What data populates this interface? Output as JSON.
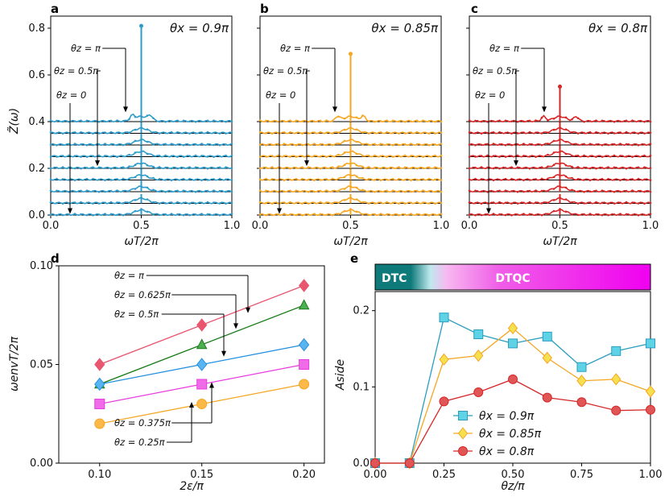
{
  "chart_data": [
    {
      "panel": "a",
      "type": "line",
      "title": "θx = 0.9π",
      "xlabel": "ωT/2π",
      "ylabel": "Z̃(ω)",
      "xlim": [
        0,
        1
      ],
      "ylim": [
        0,
        0.85
      ],
      "xticks": [
        "0.0",
        "0.5",
        "1.0"
      ],
      "yticks": [
        "0.0",
        "0.2",
        "0.4",
        "0.6",
        "0.8"
      ],
      "color": "#2f9bc9",
      "trace_offsets": [
        0.0,
        0.05,
        0.1,
        0.15,
        0.2,
        0.25,
        0.3,
        0.35,
        0.4
      ],
      "center_peak": 0.81,
      "side_peaks": [
        0.45,
        0.55
      ],
      "annotations": [
        "θz = π",
        "θz = 0.5π",
        "θz = 0"
      ]
    },
    {
      "panel": "b",
      "type": "line",
      "title": "θx = 0.85π",
      "xlabel": "ωT/2π",
      "xlim": [
        0,
        1
      ],
      "ylim": [
        0,
        0.85
      ],
      "xticks": [
        "0.0",
        "0.5",
        "1.0"
      ],
      "color": "#f5a623",
      "trace_offsets": [
        0.0,
        0.05,
        0.1,
        0.15,
        0.2,
        0.25,
        0.3,
        0.35,
        0.4
      ],
      "center_peak": 0.69,
      "side_peaks": [
        0.43,
        0.57
      ],
      "annotations": [
        "θz = π",
        "θz = 0.5π",
        "θz = 0"
      ]
    },
    {
      "panel": "c",
      "type": "line",
      "title": "θx = 0.8π",
      "xlabel": "ωT/2π",
      "xlim": [
        0,
        1
      ],
      "ylim": [
        0,
        0.85
      ],
      "xticks": [
        "0.0",
        "0.5",
        "1.0"
      ],
      "color": "#d62728",
      "trace_offsets": [
        0.0,
        0.05,
        0.1,
        0.15,
        0.2,
        0.25,
        0.3,
        0.35,
        0.4
      ],
      "center_peak": 0.55,
      "side_peaks": [
        0.41,
        0.59
      ],
      "annotations": [
        "θz = π",
        "θz = 0.5π",
        "θz = 0"
      ]
    },
    {
      "panel": "d",
      "type": "scatter",
      "xlabel": "2ε/π",
      "ylabel": "ωenvT/2π",
      "xlim": [
        0.08,
        0.21
      ],
      "ylim": [
        0,
        0.1
      ],
      "xticks": [
        "0.10",
        "0.15",
        "0.20"
      ],
      "yticks": [
        "0.00",
        "0.05",
        "0.10"
      ],
      "x": [
        0.1,
        0.15,
        0.2
      ],
      "series": [
        {
          "name": "θz = π",
          "marker": "diamond",
          "color": "#e8566f",
          "values": [
            0.05,
            0.07,
            0.09
          ]
        },
        {
          "name": "θz = 0.625π",
          "marker": "triangle",
          "color": "#4caf50",
          "line": "#1a7d1a",
          "values": [
            0.04,
            0.06,
            0.08
          ]
        },
        {
          "name": "θz = 0.5π",
          "marker": "diamond",
          "color": "#5ab4f0",
          "line": "#1f8fe0",
          "values": [
            0.04,
            0.05,
            0.06
          ]
        },
        {
          "name": "θz = 0.375π",
          "marker": "square",
          "color": "#f06be8",
          "line": "#e83ce0",
          "values": [
            0.03,
            0.04,
            0.05
          ]
        },
        {
          "name": "θz = 0.25π",
          "marker": "circle",
          "color": "#fcb94a",
          "line": "#f5a623",
          "values": [
            0.02,
            0.03,
            0.04
          ]
        }
      ]
    },
    {
      "panel": "e",
      "type": "line",
      "xlabel": "θz/π",
      "ylabel": "Aside",
      "xlim": [
        0,
        1
      ],
      "ylim": [
        0,
        0.225
      ],
      "xticks": [
        "0.00",
        "0.25",
        "0.50",
        "0.75",
        "1.00"
      ],
      "yticks": [
        "0.0",
        "0.1",
        "0.2"
      ],
      "x": [
        0,
        0.125,
        0.25,
        0.375,
        0.5,
        0.625,
        0.75,
        0.875,
        1.0
      ],
      "phase_labels": [
        "DTC",
        "DTQC"
      ],
      "legend_position": "bottom-center",
      "series": [
        {
          "name": "θx = 0.9π",
          "marker": "square",
          "color": "#5fd3e6",
          "line": "#2a9dc0",
          "values": [
            0,
            0,
            0.191,
            0.169,
            0.157,
            0.166,
            0.126,
            0.147,
            0.157
          ]
        },
        {
          "name": "θx = 0.85π",
          "marker": "diamond",
          "color": "#f7e04d",
          "line": "#f5a623",
          "values": [
            0,
            0,
            0.136,
            0.141,
            0.177,
            0.138,
            0.108,
            0.11,
            0.094
          ]
        },
        {
          "name": "θx = 0.8π",
          "marker": "circle",
          "color": "#e05555",
          "line": "#d62728",
          "values": [
            0,
            0,
            0.081,
            0.093,
            0.11,
            0.086,
            0.08,
            0.069,
            0.07
          ]
        }
      ]
    }
  ],
  "panel_letters": [
    "a",
    "b",
    "c",
    "d",
    "e"
  ]
}
